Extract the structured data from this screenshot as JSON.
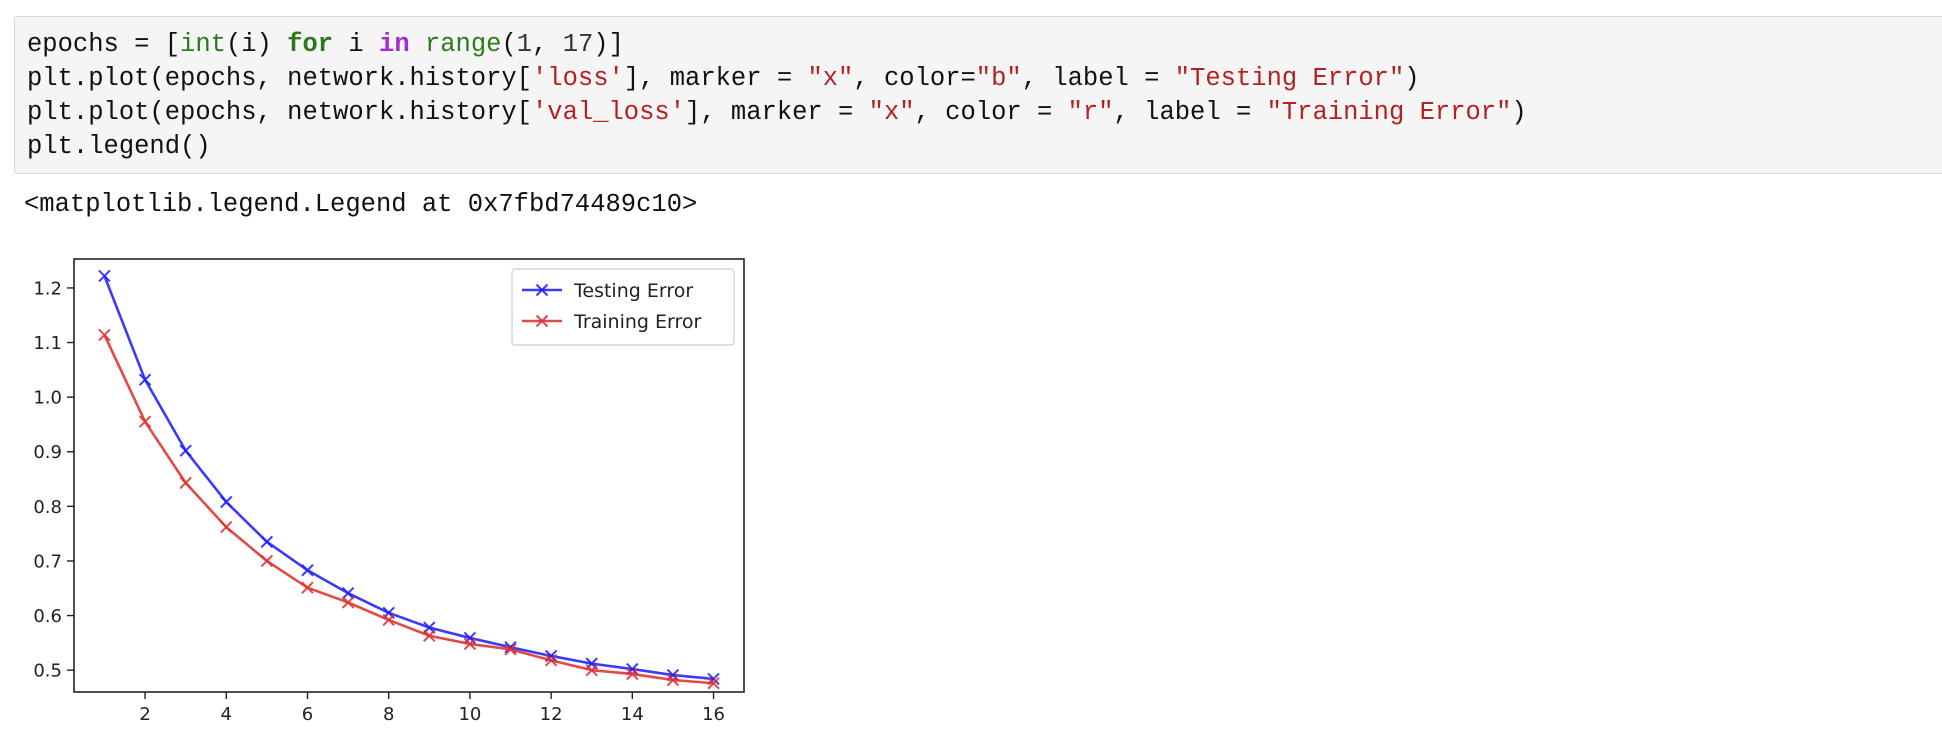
{
  "code_cell": {
    "lines": [
      [
        {
          "t": "epochs = [",
          "c": "plain"
        },
        {
          "t": "int",
          "c": "builtin"
        },
        {
          "t": "(i) ",
          "c": "plain"
        },
        {
          "t": "for",
          "c": "kw-bold"
        },
        {
          "t": " i ",
          "c": "plain"
        },
        {
          "t": "in",
          "c": "kw-in"
        },
        {
          "t": " ",
          "c": "plain"
        },
        {
          "t": "range",
          "c": "builtin"
        },
        {
          "t": "(",
          "c": "plain"
        },
        {
          "t": "1",
          "c": "num"
        },
        {
          "t": ", ",
          "c": "plain"
        },
        {
          "t": "17",
          "c": "num"
        },
        {
          "t": ")]",
          "c": "plain"
        }
      ],
      [
        {
          "t": "plt.plot(epochs, network.history[",
          "c": "plain"
        },
        {
          "t": "'loss'",
          "c": "str"
        },
        {
          "t": "], marker = ",
          "c": "plain"
        },
        {
          "t": "\"x\"",
          "c": "str"
        },
        {
          "t": ", color=",
          "c": "plain"
        },
        {
          "t": "\"b\"",
          "c": "str"
        },
        {
          "t": ", label = ",
          "c": "plain"
        },
        {
          "t": "\"Testing Error\"",
          "c": "str"
        },
        {
          "t": ")",
          "c": "plain"
        }
      ],
      [
        {
          "t": "plt.plot(epochs, network.history[",
          "c": "plain"
        },
        {
          "t": "'val_loss'",
          "c": "str"
        },
        {
          "t": "], marker = ",
          "c": "plain"
        },
        {
          "t": "\"x\"",
          "c": "str"
        },
        {
          "t": ", color = ",
          "c": "plain"
        },
        {
          "t": "\"r\"",
          "c": "str"
        },
        {
          "t": ", label = ",
          "c": "plain"
        },
        {
          "t": "\"Training Error\"",
          "c": "str"
        },
        {
          "t": ")",
          "c": "plain"
        }
      ],
      [
        {
          "t": "plt.legend()",
          "c": "plain"
        }
      ]
    ]
  },
  "output_text": "<matplotlib.legend.Legend at 0x7fbd74489c10>",
  "chart_data": {
    "type": "line",
    "title": "",
    "xlabel": "",
    "ylabel": "",
    "x": [
      1,
      2,
      3,
      4,
      5,
      6,
      7,
      8,
      9,
      10,
      11,
      12,
      13,
      14,
      15,
      16
    ],
    "xlim": [
      0.25,
      16.75
    ],
    "ylim": [
      0.46,
      1.253
    ],
    "xticks": [
      2,
      4,
      6,
      8,
      10,
      12,
      14,
      16
    ],
    "yticks": [
      0.5,
      0.6,
      0.7,
      0.8,
      0.9,
      1.0,
      1.1,
      1.2
    ],
    "ytick_labels": [
      "0.5",
      "0.6",
      "0.7",
      "0.8",
      "0.9",
      "1.0",
      "1.1",
      "1.2"
    ],
    "grid": false,
    "legend_position": "upper right",
    "marker": "x",
    "series": [
      {
        "name": "Testing Error",
        "color": "#1f1fff",
        "values": [
          1.222,
          1.032,
          0.902,
          0.808,
          0.735,
          0.683,
          0.641,
          0.605,
          0.578,
          0.559,
          0.542,
          0.526,
          0.512,
          0.502,
          0.491,
          0.484
        ]
      },
      {
        "name": "Training Error",
        "color": "#e03030",
        "values": [
          1.114,
          0.955,
          0.843,
          0.762,
          0.7,
          0.651,
          0.624,
          0.592,
          0.563,
          0.548,
          0.538,
          0.518,
          0.5,
          0.493,
          0.482,
          0.476
        ]
      }
    ]
  }
}
